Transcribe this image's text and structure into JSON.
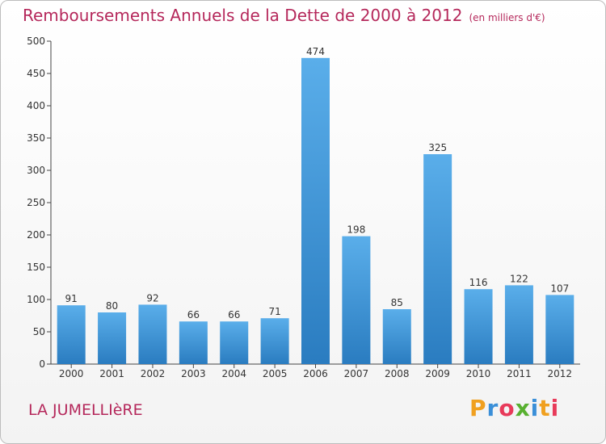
{
  "title": "Remboursements Annuels de la Dette de 2000 à 2012",
  "unit": "(en milliers d'€)",
  "commune": "LA JUMELLIèRE",
  "logo": {
    "text": "Proxiti",
    "letters": [
      "P",
      "r",
      "o",
      "x",
      "i",
      "t",
      "i"
    ]
  },
  "colors": {
    "bar_top": "#5aaeea",
    "bar_bottom": "#2a7cc0",
    "title": "#b5285b",
    "axis": "#333333"
  },
  "chart_data": {
    "type": "bar",
    "categories": [
      "2000",
      "2001",
      "2002",
      "2003",
      "2004",
      "2005",
      "2006",
      "2007",
      "2008",
      "2009",
      "2010",
      "2011",
      "2012"
    ],
    "values": [
      91,
      80,
      92,
      66,
      66,
      71,
      474,
      198,
      85,
      325,
      116,
      122,
      107
    ],
    "title": "Remboursements Annuels de la Dette de 2000 à 2012",
    "ylim": [
      0,
      500
    ],
    "yticks": [
      0,
      50,
      100,
      150,
      200,
      250,
      300,
      350,
      400,
      450,
      500
    ],
    "grid": false
  }
}
